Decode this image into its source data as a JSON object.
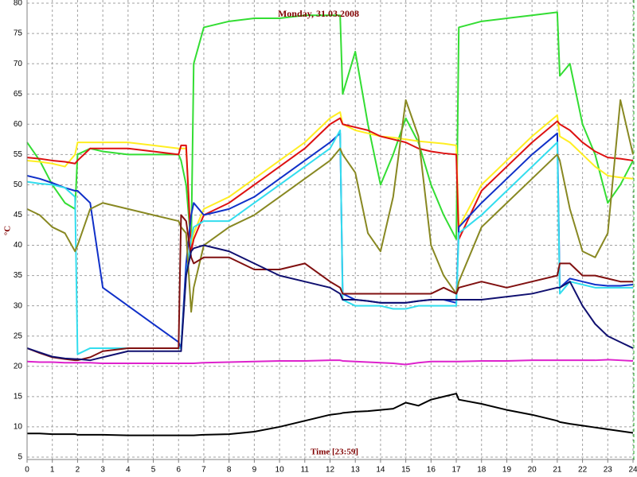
{
  "chart_data": {
    "type": "line",
    "title": "Monday, 31.03.2008",
    "xlabel": "Time [23:59]",
    "ylabel": "°C",
    "x": [
      0,
      0.5,
      1,
      1.5,
      1.9,
      2,
      2.5,
      3,
      4,
      5,
      6,
      6.1,
      6.3,
      6.5,
      6.6,
      7,
      8,
      9,
      10,
      11,
      12,
      12.4,
      12.5,
      13,
      13.5,
      14,
      14.5,
      15,
      15.5,
      16,
      16.5,
      17,
      17.1,
      18,
      19,
      20,
      21,
      21.1,
      21.5,
      22,
      22.5,
      23,
      23.5,
      24
    ],
    "xlim": [
      0,
      24
    ],
    "ylim": [
      5,
      80
    ],
    "xticks": [
      0,
      1,
      2,
      3,
      4,
      5,
      6,
      7,
      8,
      9,
      10,
      11,
      12,
      13,
      14,
      15,
      16,
      17,
      18,
      19,
      20,
      21,
      22,
      23,
      24
    ],
    "yticks": [
      5,
      10,
      15,
      20,
      25,
      30,
      35,
      40,
      45,
      50,
      55,
      60,
      65,
      70,
      75,
      80
    ],
    "grid": true,
    "series": [
      {
        "color": "#33dd33",
        "values": [
          57,
          54,
          50,
          47,
          46,
          55,
          56,
          55.5,
          55,
          55,
          55,
          54,
          50,
          40,
          70,
          76,
          77,
          77.5,
          77.5,
          78,
          78,
          78,
          65,
          72,
          60,
          50,
          55,
          61,
          57,
          50,
          45,
          41,
          76,
          77,
          77.5,
          78,
          78.5,
          68,
          70,
          60,
          55,
          47,
          50,
          54
        ]
      },
      {
        "color": "#ffee22",
        "values": [
          54,
          53.8,
          53.5,
          53,
          55,
          57,
          57,
          57,
          57,
          56.5,
          56,
          56,
          56,
          40,
          42,
          46,
          48,
          51,
          54,
          57,
          61,
          62,
          60,
          59,
          58.5,
          58,
          57.8,
          57.5,
          57.2,
          57,
          56.8,
          56.5,
          43,
          50,
          54,
          58,
          61.5,
          58,
          57,
          55,
          53,
          51.5,
          51.2,
          51
        ]
      },
      {
        "color": "#dd1111",
        "values": [
          54.5,
          54.3,
          54,
          53.8,
          53.5,
          54,
          56,
          56,
          56,
          55.5,
          55,
          56.5,
          56.5,
          39,
          41,
          45,
          47,
          50,
          53,
          56,
          60,
          61,
          60,
          59.5,
          59,
          58,
          57.5,
          57,
          56,
          55.5,
          55.2,
          55,
          41,
          49,
          53,
          57,
          60.5,
          60,
          59,
          57,
          55.5,
          54.5,
          54.3,
          54
        ]
      },
      {
        "color": "#1030c8",
        "values": [
          51.5,
          51,
          50.3,
          49.5,
          49,
          49,
          47,
          33,
          30,
          27,
          24,
          23,
          37,
          45,
          47,
          45,
          46,
          48,
          51,
          54,
          57,
          58.5,
          32,
          31,
          30.8,
          30.5,
          30.5,
          30.5,
          30.8,
          31,
          31,
          30.5,
          43,
          47,
          51,
          55,
          58.5,
          33,
          34.5,
          34,
          33.5,
          33.3,
          33.3,
          33.5
        ]
      },
      {
        "color": "#33ddee",
        "values": [
          50.5,
          50.2,
          50,
          49.5,
          48,
          22,
          23,
          23,
          23,
          23,
          23,
          23,
          35,
          41,
          43,
          44,
          44,
          47,
          50,
          53,
          56,
          59,
          31,
          30,
          30,
          30,
          29.5,
          29.5,
          30,
          30,
          30,
          30,
          42,
          45,
          49,
          53,
          57,
          32,
          34,
          33.5,
          33,
          33,
          33,
          33
        ]
      },
      {
        "color": "#888822",
        "values": [
          46,
          45,
          43,
          42,
          39,
          40,
          46,
          47,
          46,
          45,
          44,
          43,
          42,
          29,
          33,
          40,
          43,
          45,
          48,
          51,
          54,
          56,
          55,
          52,
          42,
          39,
          48,
          64,
          58,
          40,
          35,
          32,
          34,
          43,
          47,
          51,
          55,
          54,
          46,
          39,
          38,
          42,
          64,
          55
        ]
      },
      {
        "color": "#801010",
        "values": [
          23,
          22.2,
          21.5,
          21.2,
          21,
          21,
          21.5,
          22.5,
          23,
          23,
          23,
          45,
          44,
          38,
          37,
          38,
          38,
          36,
          36,
          37,
          34,
          33,
          32,
          32,
          32,
          32,
          32,
          32,
          32,
          32,
          33,
          32,
          33,
          34,
          33,
          34,
          35,
          37,
          37,
          35,
          35,
          34.5,
          34,
          34
        ]
      },
      {
        "color": "#101070",
        "values": [
          23,
          22.3,
          21.6,
          21.3,
          21.2,
          21.2,
          21,
          21.5,
          22.5,
          22.5,
          22.5,
          22.5,
          35,
          39,
          39.5,
          40,
          39,
          37,
          35,
          34,
          33,
          32,
          31,
          31,
          30.8,
          30.5,
          30.5,
          30.5,
          30.8,
          31,
          31,
          31,
          31,
          31,
          31.5,
          32,
          33,
          33,
          34,
          30,
          27,
          25,
          24,
          23
        ]
      },
      {
        "color": "#dd22cc",
        "values": [
          20.8,
          20.7,
          20.7,
          20.6,
          20.6,
          20.6,
          20.6,
          20.5,
          20.5,
          20.5,
          20.5,
          20.5,
          20.5,
          20.5,
          20.5,
          20.6,
          20.7,
          20.8,
          20.9,
          20.9,
          21,
          21,
          20.9,
          20.8,
          20.7,
          20.6,
          20.5,
          20.3,
          20.6,
          20.8,
          20.8,
          20.8,
          20.8,
          20.9,
          20.9,
          21,
          21,
          21,
          21,
          21,
          21,
          21.1,
          21,
          20.9
        ]
      },
      {
        "color": "#000000",
        "values": [
          8.9,
          8.9,
          8.8,
          8.8,
          8.8,
          8.7,
          8.7,
          8.7,
          8.6,
          8.6,
          8.6,
          8.6,
          8.6,
          8.6,
          8.6,
          8.7,
          8.8,
          9.2,
          10,
          11,
          12,
          12.2,
          12.3,
          12.5,
          12.6,
          12.8,
          13,
          14,
          13.5,
          14.5,
          15,
          15.5,
          14.5,
          13.8,
          12.8,
          12,
          11,
          10.8,
          10.5,
          10.2,
          9.9,
          9.6,
          9.3,
          9
        ]
      }
    ]
  }
}
